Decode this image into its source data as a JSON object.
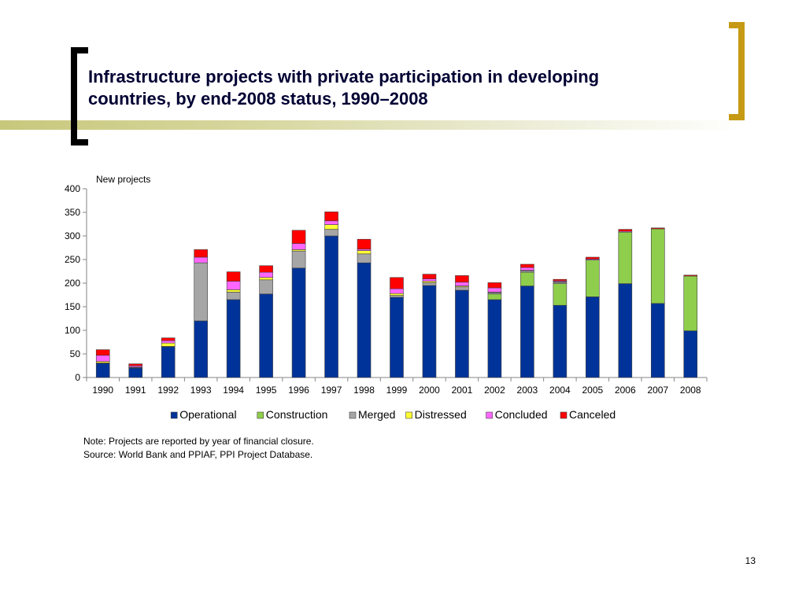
{
  "slide": {
    "title_line1": "Infrastructure projects with private participation in developing",
    "title_line2": "countries, by end-2008 status, 1990–2008",
    "note": "Note: Projects are reported by year of financial closure.",
    "source": "Source: World Bank and PPIAF, PPI Project Database.",
    "page_number": "13",
    "accent_color": "#c69a14"
  },
  "chart_data": {
    "type": "bar",
    "stacked": true,
    "ylabel": "New projects",
    "ylim": [
      0,
      400
    ],
    "yticks": [
      "0",
      "50",
      "100",
      "150",
      "200",
      "250",
      "300",
      "350",
      "400"
    ],
    "categories": [
      "1990",
      "1991",
      "1992",
      "1993",
      "1994",
      "1995",
      "1996",
      "1997",
      "1998",
      "1999",
      "2000",
      "2001",
      "2002",
      "2003",
      "2004",
      "2005",
      "2006",
      "2007",
      "2008"
    ],
    "legend_position": "bottom",
    "series": [
      {
        "name": "Operational",
        "color": "#003399",
        "values": [
          30,
          20,
          65,
          120,
          165,
          177,
          232,
          300,
          243,
          170,
          195,
          185,
          165,
          194,
          153,
          171,
          199,
          157,
          99
        ]
      },
      {
        "name": "Construction",
        "color": "#8fce4c",
        "values": [
          0,
          0,
          0,
          0,
          0,
          0,
          0,
          0,
          0,
          0,
          0,
          0,
          12,
          29,
          46,
          78,
          109,
          158,
          116
        ]
      },
      {
        "name": "Merged",
        "color": "#a6a6a6",
        "values": [
          1,
          1,
          1,
          123,
          16,
          30,
          36,
          14,
          19,
          4,
          6,
          7,
          3,
          3,
          3,
          0,
          0,
          0,
          0
        ]
      },
      {
        "name": "Distressed",
        "color": "#ffff33",
        "values": [
          3,
          1,
          7,
          0,
          5,
          5,
          3,
          10,
          7,
          4,
          3,
          2,
          1,
          1,
          1,
          0,
          0,
          0,
          0
        ]
      },
      {
        "name": "Concluded",
        "color": "#ff66ff",
        "values": [
          13,
          3,
          5,
          12,
          18,
          11,
          13,
          8,
          3,
          10,
          5,
          8,
          9,
          6,
          2,
          2,
          2,
          0,
          0
        ]
      },
      {
        "name": "Canceled",
        "color": "#ff0000",
        "values": [
          12,
          4,
          6,
          16,
          20,
          14,
          28,
          19,
          21,
          24,
          10,
          14,
          11,
          7,
          3,
          4,
          4,
          2,
          2
        ]
      }
    ]
  }
}
